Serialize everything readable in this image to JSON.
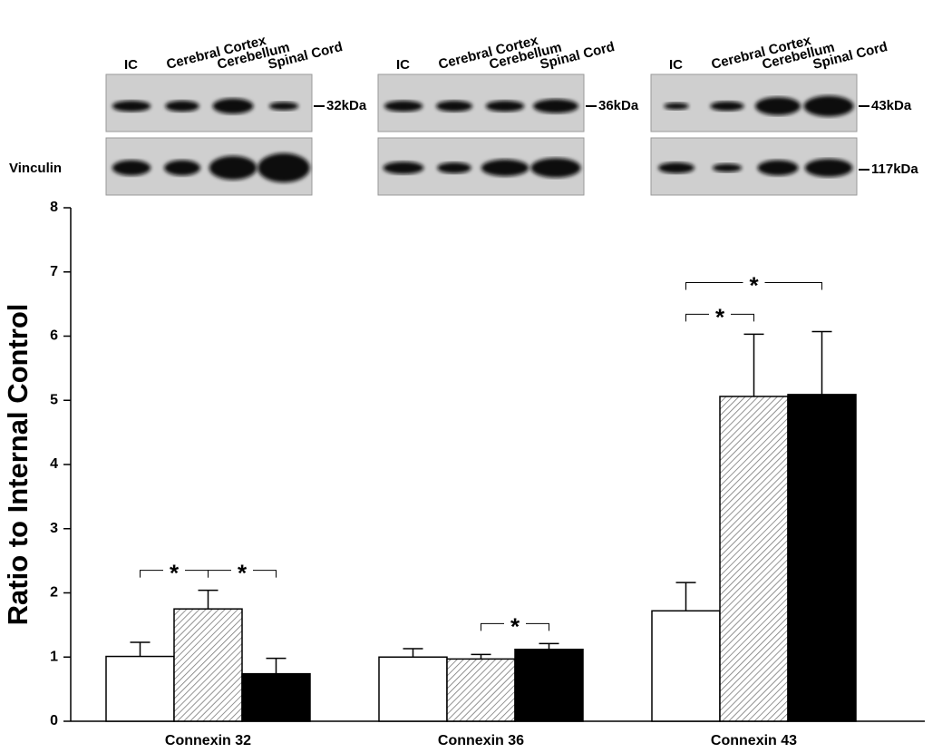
{
  "blots": {
    "loading_control": "Vinculin",
    "panels": [
      {
        "lanes": [
          "IC",
          "Cerebral Cortex",
          "Cerebellum",
          "Spinal Cord"
        ],
        "markers": [
          "32kDa"
        ]
      },
      {
        "lanes": [
          "IC",
          "Cerebral Cortex",
          "Cerebellum",
          "Spinal Cord"
        ],
        "markers": [
          "36kDa"
        ]
      },
      {
        "lanes": [
          "IC",
          "Cerebral Cortex",
          "Cerebellum",
          "Spinal Cord"
        ],
        "markers": [
          "43kDa",
          "117kDa"
        ]
      }
    ]
  },
  "chart_data": {
    "type": "bar",
    "y_label": "Ratio to Internal Control",
    "categories": [
      "Connexin 32",
      "Connexin 36",
      "Connexin 43"
    ],
    "series": [
      {
        "color": "#ffffff",
        "values": [
          1.01,
          1.0,
          1.72
        ],
        "errors": [
          0.22,
          0.13,
          0.44
        ]
      },
      {
        "color": "#a0a0a0",
        "hatch": true,
        "values": [
          1.75,
          0.97,
          5.06
        ],
        "errors": [
          0.29,
          0.07,
          0.97
        ]
      },
      {
        "color": "#000000",
        "values": [
          0.74,
          1.12,
          5.09
        ],
        "errors": [
          0.24,
          0.09,
          0.98
        ]
      }
    ],
    "ylim": [
      0,
      8
    ],
    "yticks": [
      0,
      1,
      2,
      3,
      4,
      5,
      6,
      7,
      8
    ],
    "annotations": [
      {
        "text": "*",
        "category": 0,
        "from": 0,
        "to": 1
      },
      {
        "text": "*",
        "category": 0,
        "from": 1,
        "to": 2
      },
      {
        "text": "*",
        "category": 1,
        "from": 1,
        "to": 2
      },
      {
        "text": "*",
        "category": 2,
        "from": 0,
        "to": 1
      },
      {
        "text": "*",
        "category": 2,
        "from": 0,
        "to": 2
      }
    ]
  }
}
